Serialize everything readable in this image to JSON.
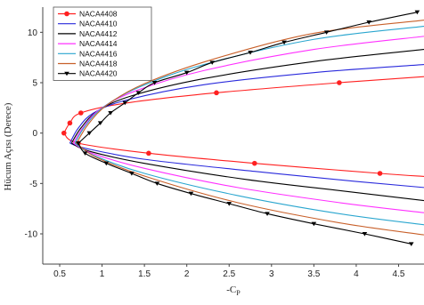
{
  "chart_data": {
    "type": "line",
    "title": "",
    "xlabel_main": "-C",
    "xlabel_sub": "P",
    "ylabel": "Hücum Açısı (Derece)",
    "xlim": [
      0.3,
      4.8
    ],
    "ylim": [
      -13,
      12.5
    ],
    "xticks": [
      0.5,
      1,
      1.5,
      2,
      2.5,
      3,
      3.5,
      4,
      4.5
    ],
    "xtick_labels": [
      "0.5",
      "1",
      "1.5",
      "2",
      "2.5",
      "3",
      "3.5",
      "4",
      "4.5"
    ],
    "yticks": [
      10,
      5,
      0,
      -5,
      -10
    ],
    "ytick_labels": [
      "10",
      "5",
      "0",
      "-5",
      "-10"
    ],
    "grid": false,
    "legend_position": "top-left",
    "series": [
      {
        "name": "NACA4408",
        "color": "#ff2020",
        "marker": "circle",
        "upper": [
          [
            0.55,
            0
          ],
          [
            0.62,
            1
          ],
          [
            0.75,
            2
          ],
          [
            1.3,
            3
          ],
          [
            2.35,
            4
          ],
          [
            3.8,
            5
          ],
          [
            4.8,
            5.6
          ]
        ],
        "lower": [
          [
            0.55,
            0
          ],
          [
            0.72,
            -1
          ],
          [
            1.55,
            -2
          ],
          [
            2.8,
            -3
          ],
          [
            4.28,
            -4
          ],
          [
            4.8,
            -4.3
          ]
        ],
        "upper_markers": [
          [
            0.55,
            0
          ],
          [
            0.62,
            1
          ],
          [
            0.75,
            2
          ],
          [
            2.35,
            4
          ],
          [
            3.8,
            5
          ]
        ],
        "lower_markers": [
          [
            0.72,
            -1
          ],
          [
            1.55,
            -2
          ],
          [
            2.8,
            -3
          ],
          [
            4.28,
            -4
          ]
        ]
      },
      {
        "name": "NACA4410",
        "color": "#2a2adc",
        "marker": "none",
        "upper": [
          [
            0.62,
            -1
          ],
          [
            0.72,
            0.5
          ],
          [
            0.9,
            2
          ],
          [
            1.3,
            3.3
          ],
          [
            2.2,
            4.8
          ],
          [
            3.5,
            6
          ],
          [
            4.8,
            6.8
          ]
        ],
        "lower": [
          [
            0.62,
            -1
          ],
          [
            0.8,
            -1.5
          ],
          [
            1.5,
            -2.6
          ],
          [
            2.8,
            -3.8
          ],
          [
            4.0,
            -4.8
          ],
          [
            4.8,
            -5.4
          ]
        ]
      },
      {
        "name": "NACA4412",
        "color": "#000000",
        "marker": "none",
        "upper": [
          [
            0.64,
            -1
          ],
          [
            0.75,
            0.5
          ],
          [
            0.95,
            2.2
          ],
          [
            1.35,
            3.7
          ],
          [
            2.2,
            5.4
          ],
          [
            3.5,
            7.1
          ],
          [
            4.8,
            8.3
          ]
        ],
        "lower": [
          [
            0.64,
            -1
          ],
          [
            0.85,
            -1.8
          ],
          [
            1.5,
            -3
          ],
          [
            2.7,
            -4.6
          ],
          [
            3.9,
            -5.8
          ],
          [
            4.8,
            -6.7
          ]
        ]
      },
      {
        "name": "NACA4414",
        "color": "#ff30ff",
        "marker": "none",
        "upper": [
          [
            0.66,
            -1
          ],
          [
            0.78,
            0.6
          ],
          [
            0.98,
            2.4
          ],
          [
            1.4,
            4.2
          ],
          [
            2.2,
            6.2
          ],
          [
            3.5,
            8.3
          ],
          [
            4.8,
            9.6
          ]
        ],
        "lower": [
          [
            0.66,
            -1
          ],
          [
            0.88,
            -2
          ],
          [
            1.5,
            -3.5
          ],
          [
            2.6,
            -5.4
          ],
          [
            3.8,
            -6.9
          ],
          [
            4.8,
            -7.9
          ]
        ]
      },
      {
        "name": "NACA4416",
        "color": "#2aa6cf",
        "marker": "none",
        "upper": [
          [
            0.68,
            -1
          ],
          [
            0.8,
            0.7
          ],
          [
            1.02,
            2.6
          ],
          [
            1.45,
            4.6
          ],
          [
            2.2,
            6.8
          ],
          [
            3.5,
            9.3
          ],
          [
            4.8,
            10.6
          ]
        ],
        "lower": [
          [
            0.68,
            -1
          ],
          [
            0.9,
            -2.2
          ],
          [
            1.5,
            -4
          ],
          [
            2.6,
            -6.2
          ],
          [
            3.8,
            -8
          ],
          [
            4.8,
            -9.1
          ]
        ]
      },
      {
        "name": "NACA4418",
        "color": "#c8602a",
        "marker": "none",
        "upper": [
          [
            0.7,
            -1
          ],
          [
            0.83,
            0.8
          ],
          [
            1.06,
            2.8
          ],
          [
            1.5,
            4.9
          ],
          [
            2.3,
            7.3
          ],
          [
            3.5,
            9.9
          ],
          [
            4.8,
            11.2
          ]
        ],
        "lower": [
          [
            0.7,
            -1
          ],
          [
            0.93,
            -2.4
          ],
          [
            1.55,
            -4.4
          ],
          [
            2.6,
            -6.9
          ],
          [
            3.8,
            -8.9
          ],
          [
            4.8,
            -10.1
          ]
        ]
      },
      {
        "name": "NACA4420",
        "color": "#000000",
        "marker": "triangle-down",
        "upper": [
          [
            0.72,
            -1
          ],
          [
            0.85,
            0
          ],
          [
            0.98,
            1
          ],
          [
            1.1,
            2
          ],
          [
            1.27,
            3
          ],
          [
            1.43,
            4
          ],
          [
            1.62,
            5
          ],
          [
            2.0,
            6
          ],
          [
            2.3,
            7
          ],
          [
            2.75,
            8
          ],
          [
            3.15,
            9
          ],
          [
            3.65,
            10
          ],
          [
            4.15,
            11
          ],
          [
            4.72,
            12
          ]
        ],
        "lower": [
          [
            0.72,
            -1
          ],
          [
            0.8,
            -2
          ],
          [
            1.05,
            -3
          ],
          [
            1.35,
            -4
          ],
          [
            1.65,
            -5
          ],
          [
            2.05,
            -6
          ],
          [
            2.5,
            -7
          ],
          [
            2.95,
            -8
          ],
          [
            3.5,
            -9
          ],
          [
            4.1,
            -10
          ],
          [
            4.65,
            -11
          ]
        ],
        "upper_markers": [
          [
            0.72,
            -1
          ],
          [
            0.85,
            0
          ],
          [
            0.98,
            1
          ],
          [
            1.1,
            2
          ],
          [
            1.27,
            3
          ],
          [
            1.43,
            4
          ],
          [
            1.62,
            5
          ],
          [
            2.0,
            6
          ],
          [
            2.3,
            7
          ],
          [
            2.75,
            8
          ],
          [
            3.15,
            9
          ],
          [
            3.65,
            10
          ],
          [
            4.15,
            11
          ],
          [
            4.72,
            12
          ]
        ],
        "lower_markers": [
          [
            0.8,
            -2
          ],
          [
            1.05,
            -3
          ],
          [
            1.35,
            -4
          ],
          [
            1.65,
            -5
          ],
          [
            2.05,
            -6
          ],
          [
            2.5,
            -7
          ],
          [
            2.95,
            -8
          ],
          [
            3.5,
            -9
          ],
          [
            4.1,
            -10
          ],
          [
            4.65,
            -11
          ]
        ]
      }
    ]
  }
}
